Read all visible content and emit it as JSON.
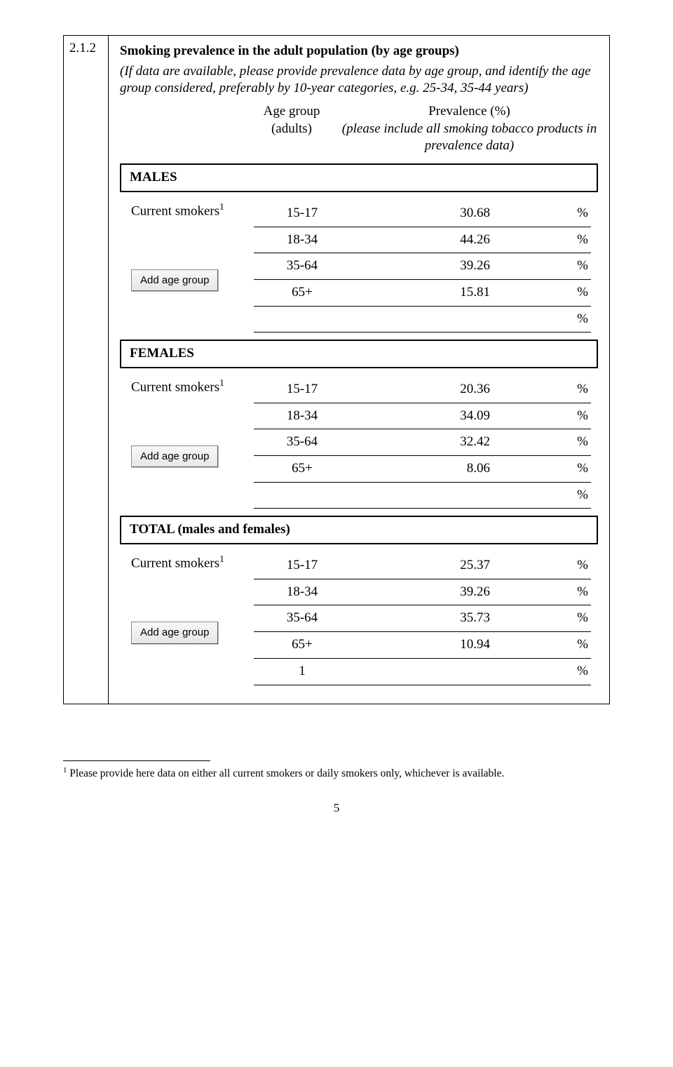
{
  "section_number": "2.1.2",
  "title": "Smoking prevalence in the adult population (by age groups)",
  "intro": "(If data are available, please provide prevalence data by age group, and identify the age group considered, preferably by 10-year categories, e.g. 25-34, 35-44 years)",
  "header_age_label": "Age group\n(adults)",
  "header_prev_line1": "Prevalence (%)",
  "header_prev_line2": "(please include all smoking tobacco products in prevalence data)",
  "row_label_prefix": "Current smokers",
  "button_label": "Add age group",
  "groups": {
    "males": {
      "heading": "MALES",
      "rows": [
        {
          "age": "15-17",
          "value": "30.68"
        },
        {
          "age": "18-34",
          "value": "44.26"
        },
        {
          "age": "35-64",
          "value": "39.26"
        },
        {
          "age": "65+",
          "value": "15.81"
        },
        {
          "age": "",
          "value": ""
        }
      ]
    },
    "females": {
      "heading": "FEMALES",
      "rows": [
        {
          "age": "15-17",
          "value": "20.36"
        },
        {
          "age": "18-34",
          "value": "34.09"
        },
        {
          "age": "35-64",
          "value": "32.42"
        },
        {
          "age": "65+",
          "value": "8.06"
        },
        {
          "age": "",
          "value": ""
        }
      ]
    },
    "total": {
      "heading": "TOTAL (males and females)",
      "rows": [
        {
          "age": "15-17",
          "value": "25.37"
        },
        {
          "age": "18-34",
          "value": "39.26"
        },
        {
          "age": "35-64",
          "value": "35.73"
        },
        {
          "age": "65+",
          "value": "10.94"
        },
        {
          "age": "1",
          "value": ""
        }
      ]
    }
  },
  "footnote": "Please provide here data on either all current smokers or daily smokers only, whichever is available.",
  "page_number": "5"
}
